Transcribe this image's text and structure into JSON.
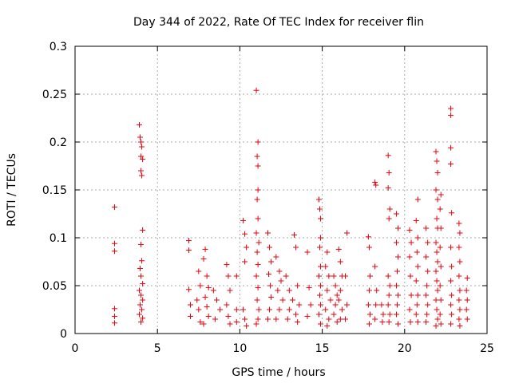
{
  "chart_data": {
    "type": "scatter",
    "title": "Day 344 of 2022, Rate Of TEC Index for receiver flin",
    "xlabel": "GPS time / hours",
    "ylabel": "ROTI / TECUs",
    "xlim": [
      0,
      25
    ],
    "ylim": [
      0,
      0.3
    ],
    "xticks": [
      "0",
      "5",
      "10",
      "15",
      "20",
      "25"
    ],
    "yticks": [
      "0",
      "0.05",
      "0.1",
      "0.15",
      "0.2",
      "0.25",
      "0.3"
    ],
    "grid": true,
    "legend": "none",
    "marker": "+",
    "color": "#e8000b",
    "points": [
      [
        2.4,
        0.132
      ],
      [
        2.4,
        0.094
      ],
      [
        2.4,
        0.086
      ],
      [
        2.4,
        0.026
      ],
      [
        2.4,
        0.018
      ],
      [
        2.4,
        0.011
      ],
      [
        3.9,
        0.218
      ],
      [
        3.95,
        0.205
      ],
      [
        4.0,
        0.2
      ],
      [
        4.05,
        0.195
      ],
      [
        4.0,
        0.185
      ],
      [
        4.1,
        0.182
      ],
      [
        4.0,
        0.17
      ],
      [
        4.05,
        0.165
      ],
      [
        4.1,
        0.108
      ],
      [
        4.0,
        0.093
      ],
      [
        4.05,
        0.076
      ],
      [
        3.95,
        0.068
      ],
      [
        4.0,
        0.06
      ],
      [
        4.1,
        0.052
      ],
      [
        3.9,
        0.045
      ],
      [
        4.0,
        0.04
      ],
      [
        4.1,
        0.035
      ],
      [
        3.95,
        0.03
      ],
      [
        4.05,
        0.025
      ],
      [
        3.9,
        0.02
      ],
      [
        4.1,
        0.016
      ],
      [
        4.0,
        0.012
      ],
      [
        6.9,
        0.097
      ],
      [
        6.9,
        0.087
      ],
      [
        6.9,
        0.046
      ],
      [
        7.0,
        0.03
      ],
      [
        7.0,
        0.018
      ],
      [
        7.5,
        0.065
      ],
      [
        7.6,
        0.05
      ],
      [
        7.4,
        0.035
      ],
      [
        7.5,
        0.025
      ],
      [
        7.6,
        0.012
      ],
      [
        7.9,
        0.088
      ],
      [
        7.8,
        0.078
      ],
      [
        8.0,
        0.06
      ],
      [
        8.1,
        0.048
      ],
      [
        7.9,
        0.038
      ],
      [
        8.0,
        0.028
      ],
      [
        8.1,
        0.018
      ],
      [
        7.8,
        0.01
      ],
      [
        8.4,
        0.045
      ],
      [
        8.6,
        0.035
      ],
      [
        8.8,
        0.025
      ],
      [
        8.5,
        0.015
      ],
      [
        9.2,
        0.072
      ],
      [
        9.3,
        0.06
      ],
      [
        9.4,
        0.045
      ],
      [
        9.2,
        0.03
      ],
      [
        9.3,
        0.018
      ],
      [
        9.4,
        0.01
      ],
      [
        9.8,
        0.06
      ],
      [
        9.8,
        0.025
      ],
      [
        9.8,
        0.012
      ],
      [
        10.2,
        0.118
      ],
      [
        10.3,
        0.104
      ],
      [
        10.4,
        0.09
      ],
      [
        10.3,
        0.075
      ],
      [
        10.2,
        0.025
      ],
      [
        10.3,
        0.015
      ],
      [
        10.4,
        0.008
      ],
      [
        11.0,
        0.254
      ],
      [
        11.1,
        0.2
      ],
      [
        11.05,
        0.185
      ],
      [
        11.1,
        0.175
      ],
      [
        11.1,
        0.15
      ],
      [
        11.05,
        0.14
      ],
      [
        11.1,
        0.12
      ],
      [
        11.0,
        0.105
      ],
      [
        11.15,
        0.095
      ],
      [
        11.05,
        0.085
      ],
      [
        11.1,
        0.072
      ],
      [
        11.0,
        0.06
      ],
      [
        11.1,
        0.048
      ],
      [
        11.05,
        0.035
      ],
      [
        11.15,
        0.025
      ],
      [
        11.1,
        0.015
      ],
      [
        11.0,
        0.01
      ],
      [
        11.7,
        0.105
      ],
      [
        11.8,
        0.09
      ],
      [
        11.9,
        0.075
      ],
      [
        11.75,
        0.062
      ],
      [
        11.85,
        0.05
      ],
      [
        11.9,
        0.038
      ],
      [
        11.8,
        0.025
      ],
      [
        11.7,
        0.015
      ],
      [
        12.2,
        0.08
      ],
      [
        12.4,
        0.065
      ],
      [
        12.5,
        0.055
      ],
      [
        12.3,
        0.045
      ],
      [
        12.6,
        0.035
      ],
      [
        12.4,
        0.025
      ],
      [
        12.2,
        0.015
      ],
      [
        12.8,
        0.06
      ],
      [
        13.0,
        0.045
      ],
      [
        13.2,
        0.035
      ],
      [
        13.0,
        0.025
      ],
      [
        12.9,
        0.015
      ],
      [
        13.3,
        0.103
      ],
      [
        13.4,
        0.09
      ],
      [
        13.5,
        0.05
      ],
      [
        13.6,
        0.03
      ],
      [
        13.4,
        0.02
      ],
      [
        13.5,
        0.012
      ],
      [
        14.1,
        0.085
      ],
      [
        14.2,
        0.048
      ],
      [
        14.3,
        0.03
      ],
      [
        14.1,
        0.018
      ],
      [
        14.8,
        0.14
      ],
      [
        14.85,
        0.13
      ],
      [
        14.9,
        0.12
      ],
      [
        14.9,
        0.1
      ],
      [
        14.85,
        0.09
      ],
      [
        14.9,
        0.07
      ],
      [
        14.8,
        0.06
      ],
      [
        14.9,
        0.05
      ],
      [
        14.85,
        0.04
      ],
      [
        14.9,
        0.03
      ],
      [
        14.8,
        0.02
      ],
      [
        14.9,
        0.01
      ],
      [
        15.3,
        0.085
      ],
      [
        15.2,
        0.07
      ],
      [
        15.4,
        0.06
      ],
      [
        15.3,
        0.045
      ],
      [
        15.5,
        0.035
      ],
      [
        15.2,
        0.025
      ],
      [
        15.4,
        0.015
      ],
      [
        15.3,
        0.008
      ],
      [
        15.7,
        0.06
      ],
      [
        15.8,
        0.05
      ],
      [
        15.9,
        0.04
      ],
      [
        15.8,
        0.03
      ],
      [
        15.7,
        0.02
      ],
      [
        15.9,
        0.012
      ],
      [
        16.0,
        0.088
      ],
      [
        16.1,
        0.075
      ],
      [
        16.2,
        0.06
      ],
      [
        16.1,
        0.045
      ],
      [
        16.0,
        0.035
      ],
      [
        16.2,
        0.025
      ],
      [
        16.1,
        0.015
      ],
      [
        16.5,
        0.105
      ],
      [
        16.4,
        0.06
      ],
      [
        16.5,
        0.03
      ],
      [
        16.4,
        0.015
      ],
      [
        17.8,
        0.101
      ],
      [
        17.85,
        0.09
      ],
      [
        17.9,
        0.06
      ],
      [
        17.85,
        0.045
      ],
      [
        17.8,
        0.03
      ],
      [
        17.9,
        0.02
      ],
      [
        17.85,
        0.01
      ],
      [
        18.2,
        0.158
      ],
      [
        18.25,
        0.155
      ],
      [
        18.2,
        0.07
      ],
      [
        18.3,
        0.045
      ],
      [
        18.25,
        0.03
      ],
      [
        18.2,
        0.015
      ],
      [
        18.6,
        0.03
      ],
      [
        18.7,
        0.02
      ],
      [
        18.65,
        0.012
      ],
      [
        19.0,
        0.186
      ],
      [
        19.05,
        0.168
      ],
      [
        19.0,
        0.152
      ],
      [
        19.1,
        0.13
      ],
      [
        19.05,
        0.12
      ],
      [
        19.0,
        0.06
      ],
      [
        19.1,
        0.05
      ],
      [
        19.05,
        0.04
      ],
      [
        19.0,
        0.03
      ],
      [
        19.1,
        0.02
      ],
      [
        19.05,
        0.012
      ],
      [
        19.5,
        0.125
      ],
      [
        19.6,
        0.11
      ],
      [
        19.5,
        0.095
      ],
      [
        19.6,
        0.08
      ],
      [
        19.55,
        0.065
      ],
      [
        19.5,
        0.05
      ],
      [
        19.6,
        0.04
      ],
      [
        19.55,
        0.03
      ],
      [
        19.5,
        0.02
      ],
      [
        19.6,
        0.01
      ],
      [
        20.3,
        0.108
      ],
      [
        20.4,
        0.095
      ],
      [
        20.3,
        0.08
      ],
      [
        20.35,
        0.06
      ],
      [
        20.4,
        0.04
      ],
      [
        20.3,
        0.025
      ],
      [
        20.35,
        0.012
      ],
      [
        20.8,
        0.14
      ],
      [
        20.7,
        0.118
      ],
      [
        20.8,
        0.1
      ],
      [
        20.75,
        0.085
      ],
      [
        20.8,
        0.07
      ],
      [
        20.7,
        0.055
      ],
      [
        20.8,
        0.04
      ],
      [
        20.75,
        0.03
      ],
      [
        20.7,
        0.02
      ],
      [
        20.8,
        0.012
      ],
      [
        21.3,
        0.11
      ],
      [
        21.4,
        0.095
      ],
      [
        21.3,
        0.08
      ],
      [
        21.4,
        0.065
      ],
      [
        21.35,
        0.05
      ],
      [
        21.3,
        0.04
      ],
      [
        21.4,
        0.03
      ],
      [
        21.35,
        0.02
      ],
      [
        21.3,
        0.012
      ],
      [
        21.9,
        0.19
      ],
      [
        21.95,
        0.18
      ],
      [
        22.0,
        0.168
      ],
      [
        21.9,
        0.15
      ],
      [
        22.0,
        0.14
      ],
      [
        21.95,
        0.12
      ],
      [
        22.0,
        0.11
      ],
      [
        21.9,
        0.095
      ],
      [
        21.95,
        0.085
      ],
      [
        22.0,
        0.075
      ],
      [
        21.9,
        0.065
      ],
      [
        21.95,
        0.055
      ],
      [
        22.0,
        0.045
      ],
      [
        21.9,
        0.035
      ],
      [
        21.95,
        0.025
      ],
      [
        22.0,
        0.015
      ],
      [
        21.9,
        0.008
      ],
      [
        22.2,
        0.145
      ],
      [
        22.15,
        0.13
      ],
      [
        22.2,
        0.11
      ],
      [
        22.15,
        0.09
      ],
      [
        22.2,
        0.07
      ],
      [
        22.15,
        0.05
      ],
      [
        22.2,
        0.035
      ],
      [
        22.15,
        0.02
      ],
      [
        22.2,
        0.01
      ],
      [
        22.8,
        0.235
      ],
      [
        22.8,
        0.228
      ],
      [
        22.8,
        0.194
      ],
      [
        22.8,
        0.177
      ],
      [
        22.85,
        0.126
      ],
      [
        22.8,
        0.09
      ],
      [
        22.85,
        0.07
      ],
      [
        22.8,
        0.055
      ],
      [
        22.85,
        0.04
      ],
      [
        22.8,
        0.03
      ],
      [
        22.85,
        0.02
      ],
      [
        22.8,
        0.01
      ],
      [
        23.3,
        0.115
      ],
      [
        23.35,
        0.105
      ],
      [
        23.3,
        0.09
      ],
      [
        23.35,
        0.075
      ],
      [
        23.3,
        0.06
      ],
      [
        23.35,
        0.045
      ],
      [
        23.3,
        0.035
      ],
      [
        23.35,
        0.025
      ],
      [
        23.3,
        0.015
      ],
      [
        23.35,
        0.008
      ],
      [
        23.8,
        0.058
      ],
      [
        23.75,
        0.045
      ],
      [
        23.8,
        0.035
      ],
      [
        23.75,
        0.025
      ],
      [
        23.8,
        0.015
      ]
    ]
  }
}
